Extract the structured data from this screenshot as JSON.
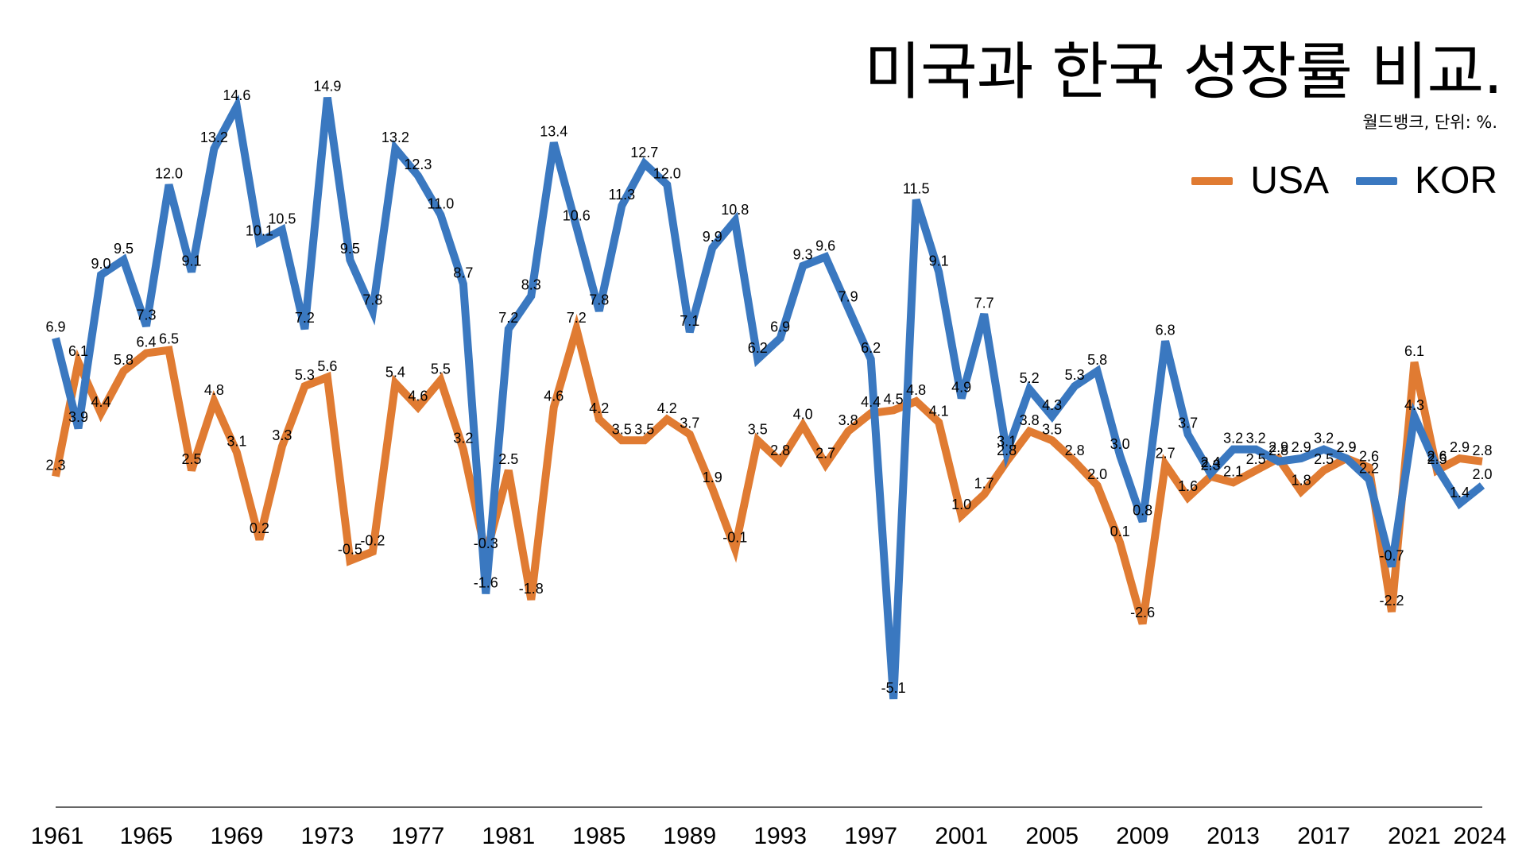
{
  "header": {
    "title": "미국과 한국 성장률 비교.",
    "source": "월드뱅크, 단위: %."
  },
  "chart_data": {
    "type": "line",
    "title": "미국과 한국 성장률 비교.",
    "subtitle": "월드뱅크, 단위: %.",
    "xlabel": "",
    "ylabel": "",
    "x": [
      1961,
      1962,
      1963,
      1964,
      1965,
      1966,
      1967,
      1968,
      1969,
      1970,
      1971,
      1972,
      1973,
      1974,
      1975,
      1976,
      1977,
      1978,
      1979,
      1980,
      1981,
      1982,
      1983,
      1984,
      1985,
      1986,
      1987,
      1988,
      1989,
      1990,
      1991,
      1992,
      1993,
      1994,
      1995,
      1996,
      1997,
      1998,
      1999,
      2000,
      2001,
      2002,
      2003,
      2004,
      2005,
      2006,
      2007,
      2008,
      2009,
      2010,
      2011,
      2012,
      2013,
      2014,
      2015,
      2016,
      2017,
      2018,
      2019,
      2020,
      2021,
      2022,
      2023,
      2024
    ],
    "x_tick_labels": [
      "1961",
      "1965",
      "1969",
      "1973",
      "1977",
      "1981",
      "1985",
      "1989",
      "1993",
      "1997",
      "2001",
      "2005",
      "2009",
      "2013",
      "2017",
      "2021",
      "2024"
    ],
    "ylim": [
      -5.5,
      15.5
    ],
    "grid": false,
    "legend_position": "top-right",
    "series": [
      {
        "name": "USA",
        "color": "#E07B32",
        "values": [
          2.3,
          6.1,
          4.4,
          5.8,
          6.4,
          6.5,
          2.5,
          4.8,
          3.1,
          0.2,
          3.3,
          5.3,
          5.6,
          -0.5,
          -0.2,
          5.4,
          4.6,
          5.5,
          3.2,
          -0.3,
          2.5,
          -1.8,
          4.6,
          7.2,
          4.2,
          3.5,
          3.5,
          4.2,
          3.7,
          1.9,
          -0.1,
          3.5,
          2.8,
          4.0,
          2.7,
          3.8,
          4.4,
          4.5,
          4.8,
          4.1,
          1.0,
          1.7,
          2.8,
          3.8,
          3.5,
          2.8,
          2.0,
          0.1,
          -2.6,
          2.7,
          1.6,
          2.3,
          2.1,
          2.5,
          2.9,
          1.8,
          2.5,
          2.9,
          2.6,
          -2.2,
          6.1,
          2.5,
          2.9,
          2.8
        ]
      },
      {
        "name": "KOR",
        "color": "#3A78C0",
        "values": [
          6.9,
          3.9,
          9.0,
          9.5,
          7.3,
          12.0,
          9.1,
          13.2,
          14.6,
          10.1,
          10.5,
          7.2,
          14.9,
          9.5,
          7.8,
          13.2,
          12.3,
          11.0,
          8.7,
          -1.6,
          7.2,
          8.3,
          13.4,
          10.6,
          7.8,
          11.3,
          12.7,
          12.0,
          7.1,
          9.9,
          10.8,
          6.2,
          6.9,
          9.3,
          9.6,
          7.9,
          6.2,
          -5.1,
          11.5,
          9.1,
          4.9,
          7.7,
          3.1,
          5.2,
          4.3,
          5.3,
          5.8,
          3.0,
          0.8,
          6.8,
          3.7,
          2.4,
          3.2,
          3.2,
          2.8,
          2.9,
          3.2,
          2.9,
          2.2,
          -0.7,
          4.3,
          2.6,
          1.4,
          2.0
        ]
      }
    ]
  }
}
